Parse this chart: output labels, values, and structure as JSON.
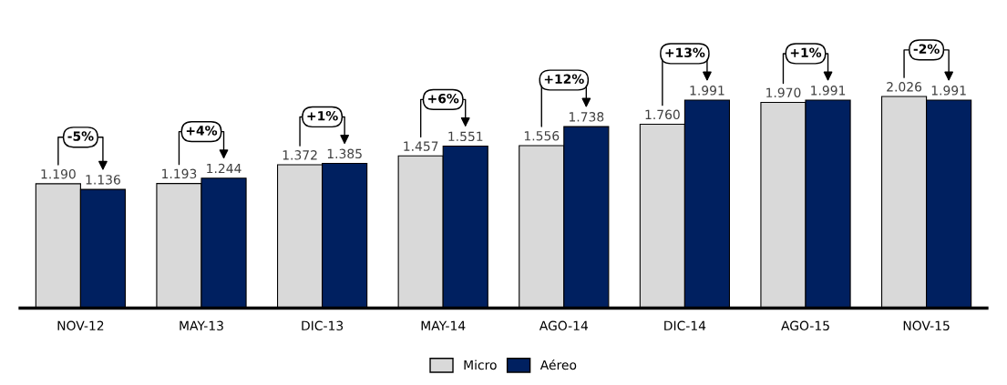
{
  "chart_data": {
    "type": "bar",
    "categories": [
      "NOV-12",
      "MAY-13",
      "DIC-13",
      "MAY-14",
      "AGO-14",
      "DIC-14",
      "AGO-15",
      "NOV-15"
    ],
    "series": [
      {
        "name": "Micro",
        "color": "#d9d9d9",
        "values": [
          1190,
          1193,
          1372,
          1457,
          1556,
          1760,
          1970,
          2026
        ],
        "value_labels": [
          "1.190",
          "1.193",
          "1.372",
          "1.457",
          "1.556",
          "1.760",
          "1.970",
          "2.026"
        ]
      },
      {
        "name": "Aéreo",
        "color": "#002060",
        "values": [
          1136,
          1244,
          1385,
          1551,
          1738,
          1991,
          1991,
          1991
        ],
        "value_labels": [
          "1.136",
          "1.244",
          "1.385",
          "1.551",
          "1.738",
          "1.991",
          "1.991",
          "1.991"
        ]
      }
    ],
    "annotations": [
      "-5%",
      "+4%",
      "+1%",
      "+6%",
      "+12%",
      "+13%",
      "+1%",
      "-2%"
    ],
    "legend": "bottom",
    "grid": false
  }
}
